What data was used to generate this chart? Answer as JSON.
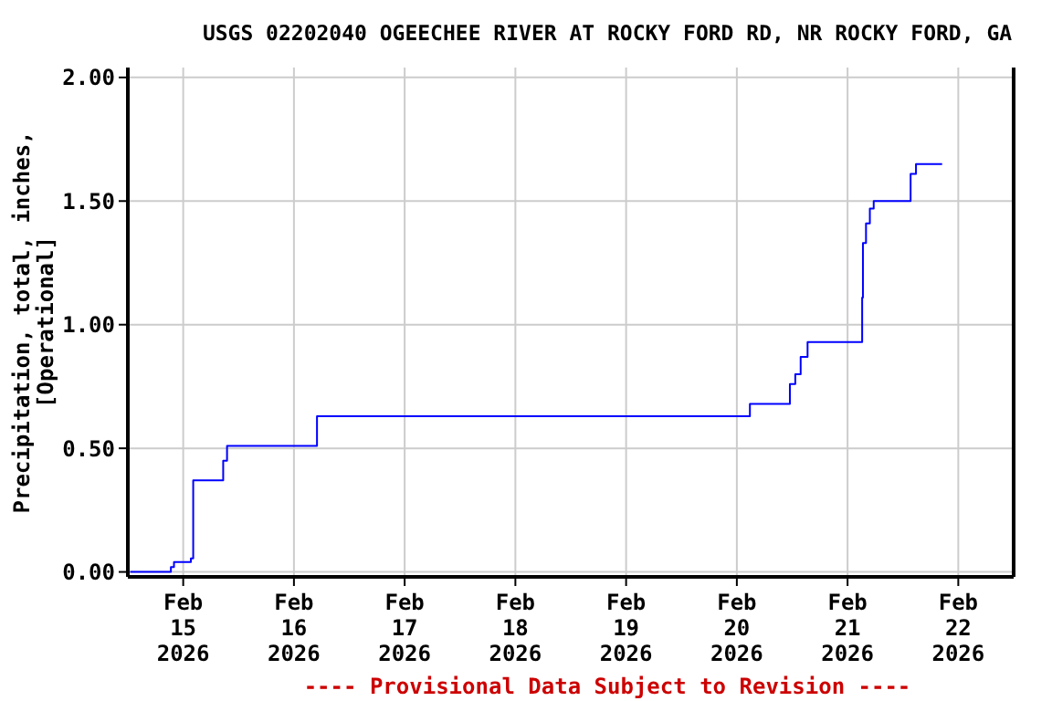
{
  "chart_data": {
    "type": "step",
    "title": "USGS 02202040 OGEECHEE RIVER AT ROCKY FORD RD, NR ROCKY FORD, GA",
    "ylabel": "Precipitation, total, inches,\n[Operational]",
    "annotations": [
      "---- Provisional Data Subject to Revision ----"
    ],
    "series": [
      {
        "color": "#0000ff",
        "x": [
          "2026-02-14T12:30",
          "2026-02-14T21:20",
          "2026-02-14T22:00",
          "2026-02-15T01:40",
          "2026-02-15T02:10",
          "2026-02-15T08:10",
          "2026-02-15T08:40",
          "2026-02-15T09:30",
          "2026-02-16T04:30",
          "2026-02-16T05:00",
          "2026-02-20T01:40",
          "2026-02-20T02:50",
          "2026-02-20T11:00",
          "2026-02-20T11:30",
          "2026-02-20T12:40",
          "2026-02-20T13:50",
          "2026-02-20T15:20",
          "2026-02-21T02:50",
          "2026-02-21T03:10",
          "2026-02-21T03:20",
          "2026-02-21T04:00",
          "2026-02-21T04:50",
          "2026-02-21T05:40",
          "2026-02-21T13:10",
          "2026-02-21T13:40",
          "2026-02-21T14:50",
          "2026-02-21T20:30"
        ],
        "values": [
          0,
          0.02,
          0.04,
          0.055,
          0.37,
          0.37,
          0.45,
          0.51,
          0.51,
          0.63,
          0.63,
          0.68,
          0.68,
          0.76,
          0.8,
          0.87,
          0.93,
          0.93,
          1.11,
          1.33,
          1.41,
          1.47,
          1.5,
          1.5,
          1.61,
          1.65,
          1.65
        ]
      }
    ],
    "xlim": [
      "2026-02-14T12:00",
      "2026-02-22T12:00"
    ],
    "xticks": [
      {
        "value": "2026-02-15",
        "label": "Feb\n15\n2026"
      },
      {
        "value": "2026-02-16",
        "label": "Feb\n16\n2026"
      },
      {
        "value": "2026-02-17",
        "label": "Feb\n17\n2026"
      },
      {
        "value": "2026-02-18",
        "label": "Feb\n18\n2026"
      },
      {
        "value": "2026-02-19",
        "label": "Feb\n19\n2026"
      },
      {
        "value": "2026-02-20",
        "label": "Feb\n20\n2026"
      },
      {
        "value": "2026-02-21",
        "label": "Feb\n21\n2026"
      },
      {
        "value": "2026-02-22",
        "label": "Feb\n22\n2026"
      }
    ],
    "ylim": [
      -0.02,
      2.04
    ],
    "yticks": [
      {
        "value": 0,
        "label": "0.00"
      },
      {
        "value": 0.5,
        "label": "0.50"
      },
      {
        "value": 1,
        "label": "1.00"
      },
      {
        "value": 1.5,
        "label": "1.50"
      },
      {
        "value": 2,
        "label": "2.00"
      }
    ],
    "grid": true,
    "line_style": "solid"
  }
}
